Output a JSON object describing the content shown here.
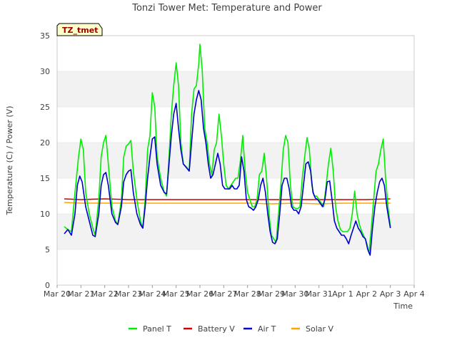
{
  "chart_data": {
    "type": "line",
    "title": "Tonzi Tower Met: Temperature and Power",
    "xlabel": "Time",
    "ylabel": "Temperature (C) / Power (V)",
    "ylim": [
      0,
      35
    ],
    "yticks": [
      0,
      5,
      10,
      15,
      20,
      25,
      30,
      35
    ],
    "xlim": [
      0,
      15
    ],
    "xticks": [
      {
        "x": 0,
        "label": "Mar 20"
      },
      {
        "x": 1,
        "label": "Mar 21"
      },
      {
        "x": 2,
        "label": "Mar 22"
      },
      {
        "x": 3,
        "label": "Mar 23"
      },
      {
        "x": 4,
        "label": "Mar 24"
      },
      {
        "x": 5,
        "label": "Mar 25"
      },
      {
        "x": 6,
        "label": "Mar 26"
      },
      {
        "x": 7,
        "label": "Mar 27"
      },
      {
        "x": 8,
        "label": "Mar 28"
      },
      {
        "x": 9,
        "label": "Mar 29"
      },
      {
        "x": 10,
        "label": "Mar 30"
      },
      {
        "x": 11,
        "label": "Mar 31"
      },
      {
        "x": 12,
        "label": "Apr 1"
      },
      {
        "x": 13,
        "label": "Apr 2"
      },
      {
        "x": 14,
        "label": "Apr 3"
      },
      {
        "x": 15,
        "label": "Apr 4"
      }
    ],
    "annotation": "TZ_tmet",
    "grid": "horizontal bands",
    "legend_position": "bottom",
    "series": [
      {
        "name": "Panel T",
        "color": "#00ee00",
        "points": [
          [
            0.3,
            8.2
          ],
          [
            0.45,
            7.8
          ],
          [
            0.6,
            7.5
          ],
          [
            0.75,
            13
          ],
          [
            0.9,
            18
          ],
          [
            1.0,
            20.5
          ],
          [
            1.1,
            19
          ],
          [
            1.2,
            13
          ],
          [
            1.35,
            10
          ],
          [
            1.5,
            8
          ],
          [
            1.6,
            7
          ],
          [
            1.75,
            12
          ],
          [
            1.85,
            18
          ],
          [
            1.95,
            20
          ],
          [
            2.05,
            21
          ],
          [
            2.15,
            17
          ],
          [
            2.3,
            11
          ],
          [
            2.45,
            9
          ],
          [
            2.55,
            8.5
          ],
          [
            2.7,
            12
          ],
          [
            2.8,
            18
          ],
          [
            2.9,
            19.5
          ],
          [
            3.0,
            19.8
          ],
          [
            3.1,
            20.3
          ],
          [
            3.2,
            16
          ],
          [
            3.35,
            12
          ],
          [
            3.5,
            9
          ],
          [
            3.6,
            8
          ],
          [
            3.7,
            12
          ],
          [
            3.8,
            19
          ],
          [
            3.9,
            21
          ],
          [
            4.0,
            27
          ],
          [
            4.1,
            25
          ],
          [
            4.2,
            18
          ],
          [
            4.35,
            15
          ],
          [
            4.5,
            13
          ],
          [
            4.6,
            12.5
          ],
          [
            4.7,
            18
          ],
          [
            4.8,
            24
          ],
          [
            4.9,
            28
          ],
          [
            5.0,
            31.2
          ],
          [
            5.1,
            28
          ],
          [
            5.2,
            20
          ],
          [
            5.3,
            17
          ],
          [
            5.45,
            16.5
          ],
          [
            5.55,
            16
          ],
          [
            5.65,
            24
          ],
          [
            5.75,
            27.5
          ],
          [
            5.85,
            28
          ],
          [
            5.95,
            31
          ],
          [
            6.0,
            33.8
          ],
          [
            6.1,
            30
          ],
          [
            6.2,
            22
          ],
          [
            6.3,
            20
          ],
          [
            6.4,
            17
          ],
          [
            6.5,
            15.5
          ],
          [
            6.6,
            19
          ],
          [
            6.7,
            20
          ],
          [
            6.8,
            24
          ],
          [
            6.9,
            21
          ],
          [
            7.0,
            17
          ],
          [
            7.1,
            14
          ],
          [
            7.2,
            13.5
          ],
          [
            7.3,
            14
          ],
          [
            7.4,
            14.5
          ],
          [
            7.5,
            15
          ],
          [
            7.6,
            15
          ],
          [
            7.7,
            17.5
          ],
          [
            7.8,
            21
          ],
          [
            7.9,
            16
          ],
          [
            8.0,
            13
          ],
          [
            8.1,
            12
          ],
          [
            8.2,
            11
          ],
          [
            8.3,
            11
          ],
          [
            8.4,
            12
          ],
          [
            8.5,
            15.5
          ],
          [
            8.6,
            16
          ],
          [
            8.7,
            18.5
          ],
          [
            8.8,
            15
          ],
          [
            8.9,
            10
          ],
          [
            9.0,
            7
          ],
          [
            9.1,
            6.5
          ],
          [
            9.2,
            6
          ],
          [
            9.3,
            10
          ],
          [
            9.4,
            14
          ],
          [
            9.5,
            19
          ],
          [
            9.6,
            21
          ],
          [
            9.7,
            20
          ],
          [
            9.8,
            14
          ],
          [
            9.9,
            11
          ],
          [
            10.0,
            10.8
          ],
          [
            10.1,
            10.7
          ],
          [
            10.2,
            11
          ],
          [
            10.3,
            15
          ],
          [
            10.4,
            18
          ],
          [
            10.5,
            20.7
          ],
          [
            10.6,
            19
          ],
          [
            10.7,
            14
          ],
          [
            10.8,
            12.5
          ],
          [
            10.9,
            12.5
          ],
          [
            11.0,
            12
          ],
          [
            11.1,
            11.5
          ],
          [
            11.2,
            11
          ],
          [
            11.3,
            14
          ],
          [
            11.4,
            17
          ],
          [
            11.5,
            19.2
          ],
          [
            11.6,
            16
          ],
          [
            11.7,
            11
          ],
          [
            11.8,
            9
          ],
          [
            11.9,
            7.8
          ],
          [
            12.0,
            7.5
          ],
          [
            12.1,
            7.5
          ],
          [
            12.2,
            7.5
          ],
          [
            12.3,
            8
          ],
          [
            12.4,
            10
          ],
          [
            12.5,
            13.2
          ],
          [
            12.6,
            10
          ],
          [
            12.7,
            8.5
          ],
          [
            12.8,
            7.5
          ],
          [
            12.9,
            6.8
          ],
          [
            13.0,
            6
          ],
          [
            13.1,
            4.5
          ],
          [
            13.2,
            8
          ],
          [
            13.3,
            12
          ],
          [
            13.4,
            16
          ],
          [
            13.5,
            17
          ],
          [
            13.6,
            19
          ],
          [
            13.7,
            20.5
          ],
          [
            13.8,
            15
          ],
          [
            13.9,
            11
          ],
          [
            14.0,
            8.2
          ]
        ]
      },
      {
        "name": "Battery V",
        "color": "#cc0000",
        "points": [
          [
            0.3,
            12.1
          ],
          [
            1.0,
            12.0
          ],
          [
            2.0,
            12.1
          ],
          [
            3.0,
            12.0
          ],
          [
            4.0,
            12.0
          ],
          [
            5.0,
            12.0
          ],
          [
            6.0,
            12.0
          ],
          [
            7.0,
            12.0
          ],
          [
            8.0,
            12.0
          ],
          [
            9.0,
            12.0
          ],
          [
            10.0,
            12.0
          ],
          [
            11.0,
            12.0
          ],
          [
            12.0,
            12.0
          ],
          [
            13.0,
            12.0
          ],
          [
            14.0,
            12.1
          ]
        ]
      },
      {
        "name": "Air T",
        "color": "#0000cc",
        "points": [
          [
            0.3,
            7.2
          ],
          [
            0.45,
            7.8
          ],
          [
            0.6,
            7
          ],
          [
            0.75,
            10
          ],
          [
            0.85,
            14
          ],
          [
            0.95,
            15.3
          ],
          [
            1.05,
            14.5
          ],
          [
            1.2,
            11
          ],
          [
            1.35,
            9
          ],
          [
            1.5,
            7
          ],
          [
            1.6,
            6.8
          ],
          [
            1.75,
            10
          ],
          [
            1.85,
            14
          ],
          [
            1.95,
            15.5
          ],
          [
            2.05,
            15.8
          ],
          [
            2.15,
            14
          ],
          [
            2.3,
            10
          ],
          [
            2.45,
            8.8
          ],
          [
            2.55,
            8.5
          ],
          [
            2.7,
            11
          ],
          [
            2.8,
            14.5
          ],
          [
            2.9,
            15.5
          ],
          [
            3.0,
            16
          ],
          [
            3.1,
            16.2
          ],
          [
            3.2,
            13
          ],
          [
            3.35,
            10
          ],
          [
            3.5,
            8.5
          ],
          [
            3.6,
            8
          ],
          [
            3.7,
            11
          ],
          [
            3.8,
            15
          ],
          [
            3.9,
            18
          ],
          [
            4.0,
            20.5
          ],
          [
            4.1,
            20.8
          ],
          [
            4.2,
            17
          ],
          [
            4.35,
            14
          ],
          [
            4.5,
            13
          ],
          [
            4.6,
            12.8
          ],
          [
            4.7,
            17
          ],
          [
            4.8,
            21
          ],
          [
            4.9,
            24
          ],
          [
            5.0,
            25.5
          ],
          [
            5.1,
            22
          ],
          [
            5.2,
            19
          ],
          [
            5.3,
            17
          ],
          [
            5.45,
            16.4
          ],
          [
            5.55,
            16
          ],
          [
            5.65,
            20
          ],
          [
            5.75,
            24
          ],
          [
            5.85,
            26
          ],
          [
            5.95,
            27.3
          ],
          [
            6.05,
            26
          ],
          [
            6.15,
            22
          ],
          [
            6.25,
            20
          ],
          [
            6.35,
            17
          ],
          [
            6.45,
            15
          ],
          [
            6.55,
            15.5
          ],
          [
            6.65,
            17
          ],
          [
            6.75,
            18.5
          ],
          [
            6.85,
            17
          ],
          [
            6.95,
            14
          ],
          [
            7.05,
            13.5
          ],
          [
            7.15,
            13.5
          ],
          [
            7.25,
            13.5
          ],
          [
            7.35,
            14
          ],
          [
            7.45,
            13.5
          ],
          [
            7.55,
            13.5
          ],
          [
            7.65,
            14
          ],
          [
            7.75,
            18
          ],
          [
            7.85,
            16
          ],
          [
            7.95,
            12
          ],
          [
            8.05,
            11
          ],
          [
            8.15,
            10.8
          ],
          [
            8.25,
            10.5
          ],
          [
            8.35,
            11
          ],
          [
            8.45,
            12
          ],
          [
            8.55,
            14
          ],
          [
            8.65,
            15
          ],
          [
            8.75,
            13
          ],
          [
            8.85,
            10
          ],
          [
            8.95,
            7.5
          ],
          [
            9.05,
            6
          ],
          [
            9.15,
            5.8
          ],
          [
            9.25,
            6.5
          ],
          [
            9.35,
            10
          ],
          [
            9.45,
            14
          ],
          [
            9.55,
            15
          ],
          [
            9.65,
            15
          ],
          [
            9.75,
            13.5
          ],
          [
            9.85,
            11
          ],
          [
            9.95,
            10.5
          ],
          [
            10.05,
            10.5
          ],
          [
            10.15,
            10
          ],
          [
            10.25,
            11
          ],
          [
            10.35,
            14
          ],
          [
            10.45,
            17
          ],
          [
            10.55,
            17.3
          ],
          [
            10.65,
            16
          ],
          [
            10.75,
            13
          ],
          [
            10.85,
            12.2
          ],
          [
            10.95,
            12
          ],
          [
            11.05,
            11.5
          ],
          [
            11.15,
            11
          ],
          [
            11.25,
            12
          ],
          [
            11.35,
            14.5
          ],
          [
            11.45,
            14.6
          ],
          [
            11.55,
            12
          ],
          [
            11.65,
            9
          ],
          [
            11.75,
            8
          ],
          [
            11.85,
            7.5
          ],
          [
            11.95,
            7
          ],
          [
            12.05,
            7
          ],
          [
            12.15,
            6.5
          ],
          [
            12.25,
            5.8
          ],
          [
            12.35,
            7
          ],
          [
            12.45,
            8
          ],
          [
            12.55,
            9
          ],
          [
            12.65,
            8
          ],
          [
            12.75,
            7.5
          ],
          [
            12.85,
            6.8
          ],
          [
            12.95,
            6.5
          ],
          [
            13.05,
            5
          ],
          [
            13.15,
            4.2
          ],
          [
            13.25,
            8
          ],
          [
            13.35,
            11
          ],
          [
            13.45,
            13
          ],
          [
            13.55,
            14.5
          ],
          [
            13.65,
            15
          ],
          [
            13.75,
            14
          ],
          [
            13.85,
            11
          ],
          [
            13.95,
            9
          ],
          [
            14.0,
            8
          ]
        ]
      },
      {
        "name": "Solar V",
        "color": "#ffa500",
        "points": [
          [
            0.3,
            11.6
          ],
          [
            1.0,
            11.5
          ],
          [
            2.0,
            11.5
          ],
          [
            3.0,
            11.5
          ],
          [
            4.0,
            11.5
          ],
          [
            5.0,
            11.5
          ],
          [
            6.0,
            11.5
          ],
          [
            7.0,
            11.5
          ],
          [
            8.0,
            11.5
          ],
          [
            9.0,
            11.4
          ],
          [
            10.0,
            11.5
          ],
          [
            11.0,
            11.4
          ],
          [
            12.0,
            11.5
          ],
          [
            13.0,
            11.5
          ],
          [
            14.0,
            11.5
          ]
        ]
      }
    ]
  }
}
